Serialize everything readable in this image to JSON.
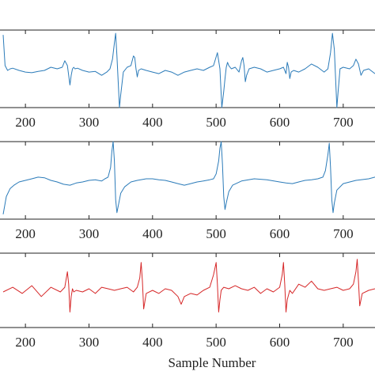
{
  "chart_data": [
    {
      "type": "line",
      "panel": "top",
      "color": "#2b7bb9",
      "x_range": [
        160,
        750
      ],
      "x_ticks": [
        200,
        300,
        400,
        500,
        600,
        700
      ],
      "y_range": [
        -1.2,
        1.2
      ],
      "series": [
        {
          "name": "",
          "x": [
            165,
            168,
            172,
            176,
            180,
            190,
            200,
            210,
            220,
            230,
            240,
            250,
            258,
            262,
            266,
            270,
            272,
            274,
            276,
            278,
            282,
            290,
            300,
            310,
            320,
            328,
            333,
            337,
            340,
            342,
            344,
            346,
            348,
            350,
            354,
            360,
            366,
            370,
            372,
            374,
            376,
            378,
            382,
            390,
            400,
            410,
            420,
            430,
            440,
            450,
            460,
            470,
            480,
            490,
            496,
            502,
            506,
            509,
            512,
            514,
            516,
            518,
            520,
            524,
            530,
            536,
            540,
            542,
            544,
            546,
            548,
            552,
            560,
            570,
            580,
            590,
            600,
            606,
            610,
            612,
            614,
            616,
            618,
            622,
            630,
            640,
            650,
            660,
            670,
            676,
            680,
            683,
            686,
            688,
            690,
            692,
            695,
            700,
            710,
            716,
            720,
            724,
            728,
            732,
            740,
            750
          ],
          "y": [
            1.05,
            0.1,
            -0.05,
            0.0,
            0.02,
            -0.05,
            -0.1,
            -0.12,
            -0.08,
            -0.05,
            0.05,
            0.0,
            0.05,
            0.25,
            0.1,
            -0.5,
            -0.2,
            0.0,
            0.05,
            0.0,
            0.02,
            -0.05,
            -0.1,
            -0.08,
            -0.2,
            -0.1,
            0.0,
            0.3,
            0.8,
            1.1,
            0.4,
            -0.4,
            -1.2,
            -0.8,
            -0.1,
            0.05,
            0.1,
            0.4,
            0.35,
            0.0,
            -0.25,
            -0.05,
            0.0,
            -0.05,
            -0.1,
            -0.15,
            -0.05,
            -0.1,
            -0.2,
            -0.1,
            -0.05,
            0.0,
            -0.05,
            0.05,
            0.1,
            0.5,
            0.0,
            -1.2,
            -0.7,
            -0.3,
            0.05,
            0.2,
            0.1,
            0.0,
            0.05,
            -0.1,
            0.25,
            0.35,
            0.1,
            -0.4,
            -0.2,
            0.0,
            0.05,
            0.0,
            -0.1,
            -0.05,
            0.0,
            0.05,
            -0.15,
            0.2,
            0.05,
            -0.3,
            -0.1,
            -0.05,
            -0.1,
            0.0,
            0.15,
            0.05,
            -0.1,
            0.0,
            0.5,
            1.1,
            0.6,
            -0.3,
            -1.2,
            -0.7,
            0.0,
            0.05,
            0.0,
            0.1,
            0.3,
            0.15,
            -0.2,
            -0.05,
            0.0,
            -0.15
          ]
        }
      ]
    },
    {
      "type": "line",
      "panel": "middle",
      "color": "#2b7bb9",
      "x_range": [
        160,
        750
      ],
      "x_ticks": [
        200,
        300,
        400,
        500,
        600,
        700
      ],
      "y_range": [
        -1.2,
        1.2
      ],
      "series": [
        {
          "name": "",
          "x": [
            165,
            170,
            176,
            182,
            190,
            200,
            210,
            220,
            230,
            240,
            250,
            260,
            270,
            280,
            290,
            300,
            310,
            320,
            325,
            330,
            334,
            336,
            338,
            340,
            342,
            344,
            346,
            350,
            356,
            366,
            376,
            390,
            400,
            410,
            420,
            430,
            440,
            450,
            460,
            470,
            480,
            490,
            496,
            500,
            504,
            506,
            508,
            510,
            512,
            514,
            516,
            520,
            526,
            540,
            560,
            580,
            600,
            610,
            620,
            630,
            640,
            650,
            660,
            668,
            672,
            676,
            678,
            680,
            682,
            684,
            686,
            690,
            700,
            720,
            740,
            750
          ],
          "y": [
            -1.05,
            -0.5,
            -0.25,
            -0.15,
            -0.05,
            0.0,
            0.05,
            0.1,
            0.08,
            0.0,
            -0.05,
            -0.12,
            -0.15,
            -0.08,
            -0.05,
            0.0,
            0.02,
            -0.02,
            0.05,
            0.1,
            0.4,
            0.9,
            1.2,
            0.6,
            -0.6,
            -1.0,
            -0.8,
            -0.4,
            -0.2,
            -0.05,
            0.0,
            0.05,
            0.05,
            0.02,
            0.0,
            -0.05,
            -0.1,
            -0.15,
            -0.1,
            -0.05,
            -0.02,
            0.02,
            0.05,
            0.2,
            0.6,
            1.0,
            1.2,
            0.5,
            -0.5,
            -0.9,
            -0.7,
            -0.35,
            -0.15,
            -0.02,
            0.05,
            0.02,
            -0.05,
            -0.08,
            -0.1,
            -0.05,
            0.0,
            0.02,
            0.05,
            0.1,
            0.3,
            0.8,
            1.15,
            0.4,
            -0.6,
            -1.0,
            -0.7,
            -0.3,
            -0.1,
            0.0,
            0.05,
            0.1
          ]
        }
      ]
    },
    {
      "type": "line",
      "panel": "bottom",
      "color": "#d62728",
      "x_range": [
        160,
        750
      ],
      "x_ticks": [
        200,
        300,
        400,
        500,
        600,
        700
      ],
      "y_range": [
        -1.2,
        1.2
      ],
      "series": [
        {
          "name": "",
          "x": [
            165,
            180,
            195,
            210,
            225,
            240,
            255,
            262,
            266,
            268,
            270,
            272,
            274,
            276,
            280,
            290,
            300,
            310,
            320,
            330,
            340,
            350,
            360,
            370,
            376,
            380,
            382,
            384,
            386,
            390,
            400,
            410,
            420,
            430,
            440,
            445,
            450,
            460,
            470,
            480,
            490,
            496,
            500,
            502,
            504,
            506,
            508,
            512,
            520,
            530,
            540,
            550,
            560,
            570,
            580,
            590,
            600,
            604,
            606,
            608,
            610,
            612,
            616,
            620,
            630,
            640,
            650,
            660,
            670,
            680,
            690,
            700,
            710,
            716,
            720,
            722,
            724,
            726,
            730,
            740,
            750
          ],
          "y": [
            -0.05,
            0.1,
            -0.1,
            0.15,
            -0.2,
            0.1,
            -0.05,
            0.1,
            0.6,
            0.2,
            -0.7,
            -0.2,
            0.05,
            -0.05,
            0.0,
            -0.05,
            0.05,
            -0.1,
            0.1,
            0.05,
            0.0,
            0.05,
            0.1,
            -0.05,
            0.1,
            0.4,
            0.9,
            0.3,
            -0.6,
            -0.1,
            0.0,
            -0.1,
            0.05,
            0.0,
            -0.2,
            -0.45,
            -0.2,
            -0.1,
            -0.15,
            0.0,
            0.1,
            0.5,
            0.9,
            0.2,
            -0.7,
            -0.3,
            0.0,
            0.1,
            0.05,
            0.15,
            0.05,
            0.0,
            0.1,
            -0.1,
            0.05,
            -0.05,
            0.1,
            0.5,
            0.9,
            0.2,
            -0.7,
            -0.3,
            0.0,
            -0.1,
            0.2,
            0.1,
            0.3,
            0.05,
            0.0,
            0.05,
            0.1,
            0.0,
            0.05,
            0.2,
            0.6,
            1.0,
            0.3,
            -0.5,
            -0.1,
            0.0,
            0.05
          ]
        }
      ]
    }
  ],
  "xlabel": "Sample Number",
  "tick_labels": [
    "200",
    "300",
    "400",
    "500",
    "600",
    "700"
  ]
}
